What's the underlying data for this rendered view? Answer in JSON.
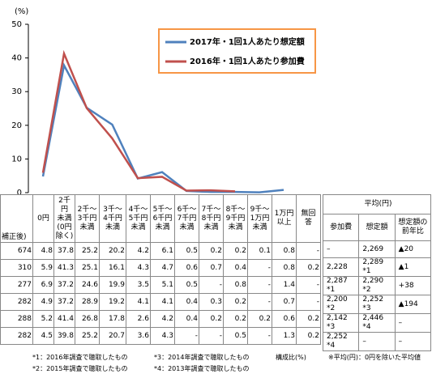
{
  "chart_data": {
    "type": "line",
    "ylabel": "(%)",
    "ylim": [
      0,
      50
    ],
    "yticks": [
      0,
      10,
      20,
      30,
      40,
      50
    ],
    "categories": [
      "0円",
      "2千円\n未満\n(0円\n除く)",
      "2千～\n3千円\n未満",
      "3千～\n4千円\n未満",
      "4千～\n5千円\n未満",
      "5千～\n6千円\n未満",
      "6千～\n7千円\n未満",
      "7千～\n8千円\n未満",
      "8千～\n9千円\n未満",
      "9千～\n1万円\n未満",
      "1万円\n以上",
      "無回\n答"
    ],
    "series": [
      {
        "name": "2017年・1回1人あたり想定額",
        "color": "#4f81bd",
        "values": [
          4.8,
          37.8,
          25.2,
          20.2,
          4.2,
          6.1,
          0.5,
          0.2,
          0.2,
          0.1,
          0.8,
          null
        ]
      },
      {
        "name": "2016年・1回1人あたり参加費",
        "color": "#c0504d",
        "values": [
          5.9,
          41.3,
          25.1,
          16.1,
          4.3,
          4.7,
          0.6,
          0.7,
          0.4,
          null,
          0.8,
          null
        ]
      }
    ],
    "legend": "upper right"
  },
  "table": {
    "corner": "補正後)",
    "rows": [
      [
        "674",
        "4.8",
        "37.8",
        "25.2",
        "20.2",
        "4.2",
        "6.1",
        "0.5",
        "0.2",
        "0.2",
        "0.1",
        "0.8",
        "-"
      ],
      [
        "310",
        "5.9",
        "41.3",
        "25.1",
        "16.1",
        "4.3",
        "4.7",
        "0.6",
        "0.7",
        "0.4",
        "-",
        "0.8",
        "0.2"
      ],
      [
        "277",
        "6.9",
        "37.2",
        "24.6",
        "19.9",
        "3.5",
        "5.1",
        "0.5",
        "-",
        "0.8",
        "-",
        "1.4",
        "-"
      ],
      [
        "282",
        "4.9",
        "37.2",
        "28.9",
        "19.2",
        "4.1",
        "4.1",
        "0.4",
        "0.3",
        "0.2",
        "-",
        "0.7",
        "-"
      ],
      [
        "288",
        "5.2",
        "41.4",
        "26.8",
        "17.8",
        "2.6",
        "4.2",
        "0.4",
        "0.2",
        "0.2",
        "0.2",
        "0.6",
        "0.2"
      ],
      [
        "282",
        "4.5",
        "39.8",
        "25.2",
        "20.7",
        "3.6",
        "4.3",
        "-",
        "-",
        "0.5",
        "-",
        "1.3",
        "0.2"
      ]
    ],
    "avg_header": "平均(円)",
    "avg_columns": [
      "参加費",
      "想定額",
      "想定額の\n前年比"
    ],
    "avg_rows": [
      [
        "–",
        "2,269",
        "▲20"
      ],
      [
        "2,228",
        "2,289 *1",
        "▲1"
      ],
      [
        "2,287 *1",
        "2,290 *2",
        "+38"
      ],
      [
        "2,200 *2",
        "2,252 *3",
        "▲194"
      ],
      [
        "2,142 *3",
        "2,446 *4",
        "–"
      ],
      [
        "2,252 *4",
        "–",
        "–"
      ]
    ]
  },
  "footnotes": [
    "*1：2016年調査で聴取したもの",
    "*2：2015年調査で聴取したもの",
    "*3：2014年調査で聴取したもの",
    "*4：2013年調査で聴取したもの",
    "構成比(%)",
    "※平均(円)：0円を除いた平均値"
  ]
}
